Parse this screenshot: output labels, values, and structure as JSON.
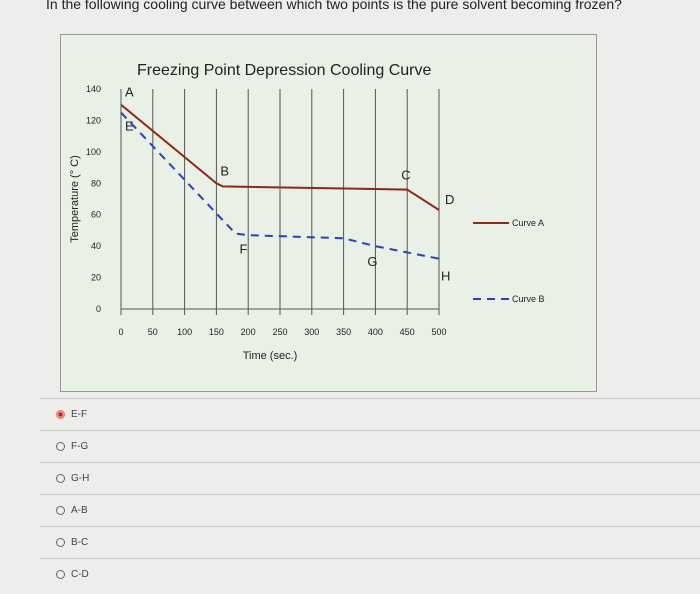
{
  "question": "In the following cooling curve between which two points is the pure solvent becoming frozen?",
  "chart_data": {
    "type": "line",
    "title": "Freezing Point Depression Cooling Curve",
    "xlabel": "Time (sec.)",
    "ylabel": "Temperature (° C)",
    "xlim": [
      0,
      500
    ],
    "ylim": [
      0,
      140
    ],
    "xticks": [
      "0",
      "50",
      "100",
      "150",
      "200",
      "250",
      "300",
      "350",
      "400",
      "450",
      "500"
    ],
    "yticks": [
      "0",
      "20",
      "40",
      "60",
      "80",
      "100",
      "120",
      "140"
    ],
    "grid": "vertical",
    "legend": "right",
    "series": [
      {
        "name": "Curve A",
        "style": "solid",
        "color": "#8a2a1a",
        "x": [
          0,
          150,
          160,
          450,
          500
        ],
        "y": [
          130,
          80,
          78,
          76,
          63
        ],
        "points": [
          {
            "label": "A",
            "x": 0,
            "y": 130
          },
          {
            "label": "B",
            "x": 150,
            "y": 80
          },
          {
            "label": "C",
            "x": 450,
            "y": 76
          },
          {
            "label": "D",
            "x": 500,
            "y": 63
          }
        ]
      },
      {
        "name": "Curve B",
        "style": "dashed",
        "color": "#2a40c0",
        "x": [
          0,
          180,
          200,
          350,
          400,
          500
        ],
        "y": [
          125,
          48,
          47,
          45,
          40,
          32
        ],
        "points": [
          {
            "label": "E",
            "x": 0,
            "y": 125
          },
          {
            "label": "F",
            "x": 180,
            "y": 48
          },
          {
            "label": "G",
            "x": 400,
            "y": 40
          },
          {
            "label": "H",
            "x": 500,
            "y": 32
          }
        ]
      }
    ]
  },
  "options": [
    {
      "label": "E-F",
      "selected": true
    },
    {
      "label": "F-G",
      "selected": false
    },
    {
      "label": "G-H",
      "selected": false
    },
    {
      "label": "A-B",
      "selected": false
    },
    {
      "label": "B-C",
      "selected": false
    },
    {
      "label": "C-D",
      "selected": false
    }
  ]
}
